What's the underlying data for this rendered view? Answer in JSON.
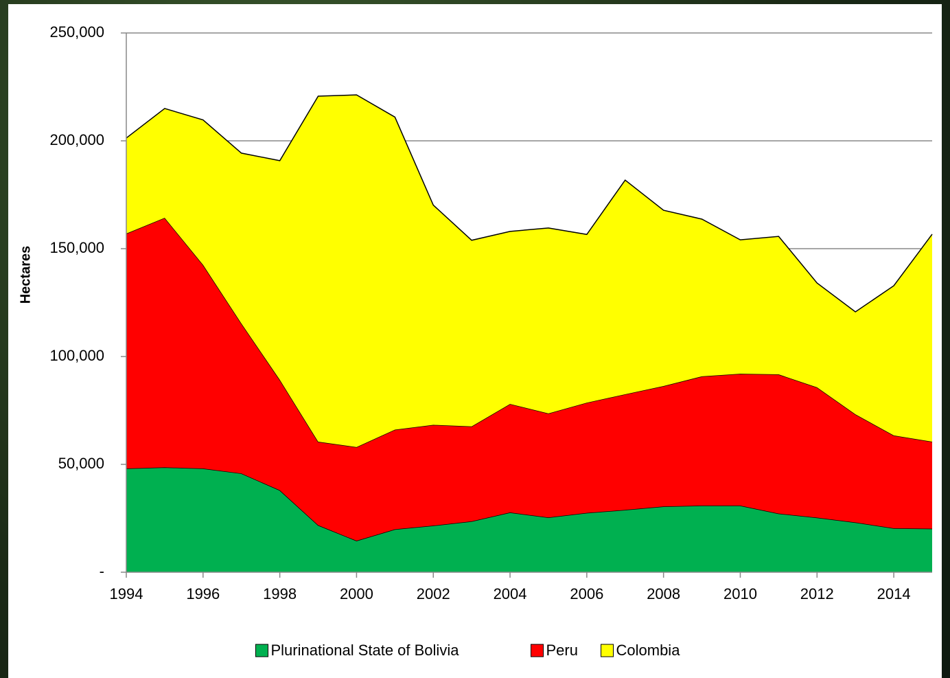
{
  "chart_data": {
    "type": "stacked-area",
    "y_label": "Hectares",
    "x": [
      1994,
      1995,
      1996,
      1997,
      1998,
      1999,
      2000,
      2001,
      2002,
      2003,
      2004,
      2005,
      2006,
      2007,
      2008,
      2009,
      2010,
      2011,
      2012,
      2013,
      2014,
      2015
    ],
    "series": [
      {
        "name": "Plurinational State of Bolivia",
        "color": "#00b050",
        "values": [
          48100,
          48600,
          48100,
          45800,
          38000,
          21800,
          14600,
          19900,
          21600,
          23600,
          27700,
          25400,
          27500,
          28900,
          30500,
          30900,
          30900,
          27200,
          25300,
          23100,
          20400,
          20200
        ]
      },
      {
        "name": "Peru",
        "color": "#ff0000",
        "values": [
          108900,
          115700,
          94400,
          69500,
          51200,
          38700,
          43400,
          46200,
          46700,
          44000,
          50300,
          48200,
          51100,
          53600,
          55800,
          59900,
          61100,
          64500,
          60400,
          50100,
          43000,
          40300
        ]
      },
      {
        "name": "Colombia",
        "color": "#ffff00",
        "values": [
          44300,
          50700,
          67200,
          79000,
          101600,
          160200,
          163300,
          144900,
          101900,
          86300,
          80000,
          86000,
          78000,
          99300,
          81500,
          72900,
          62100,
          64000,
          48400,
          47500,
          69400,
          96200
        ]
      }
    ],
    "xlim": [
      1994,
      2015
    ],
    "xticks": [
      1994,
      1996,
      1998,
      2000,
      2002,
      2004,
      2006,
      2008,
      2010,
      2012,
      2014
    ],
    "ylim": [
      0,
      250000
    ],
    "yticks": [
      {
        "value": 0,
        "label": "-"
      },
      {
        "value": 50000,
        "label": "50,000"
      },
      {
        "value": 100000,
        "label": "100,000"
      },
      {
        "value": 150000,
        "label": "150,000"
      },
      {
        "value": 200000,
        "label": "200,000"
      },
      {
        "value": 250000,
        "label": "250,000"
      }
    ],
    "grid": true,
    "legend": "bottom"
  }
}
